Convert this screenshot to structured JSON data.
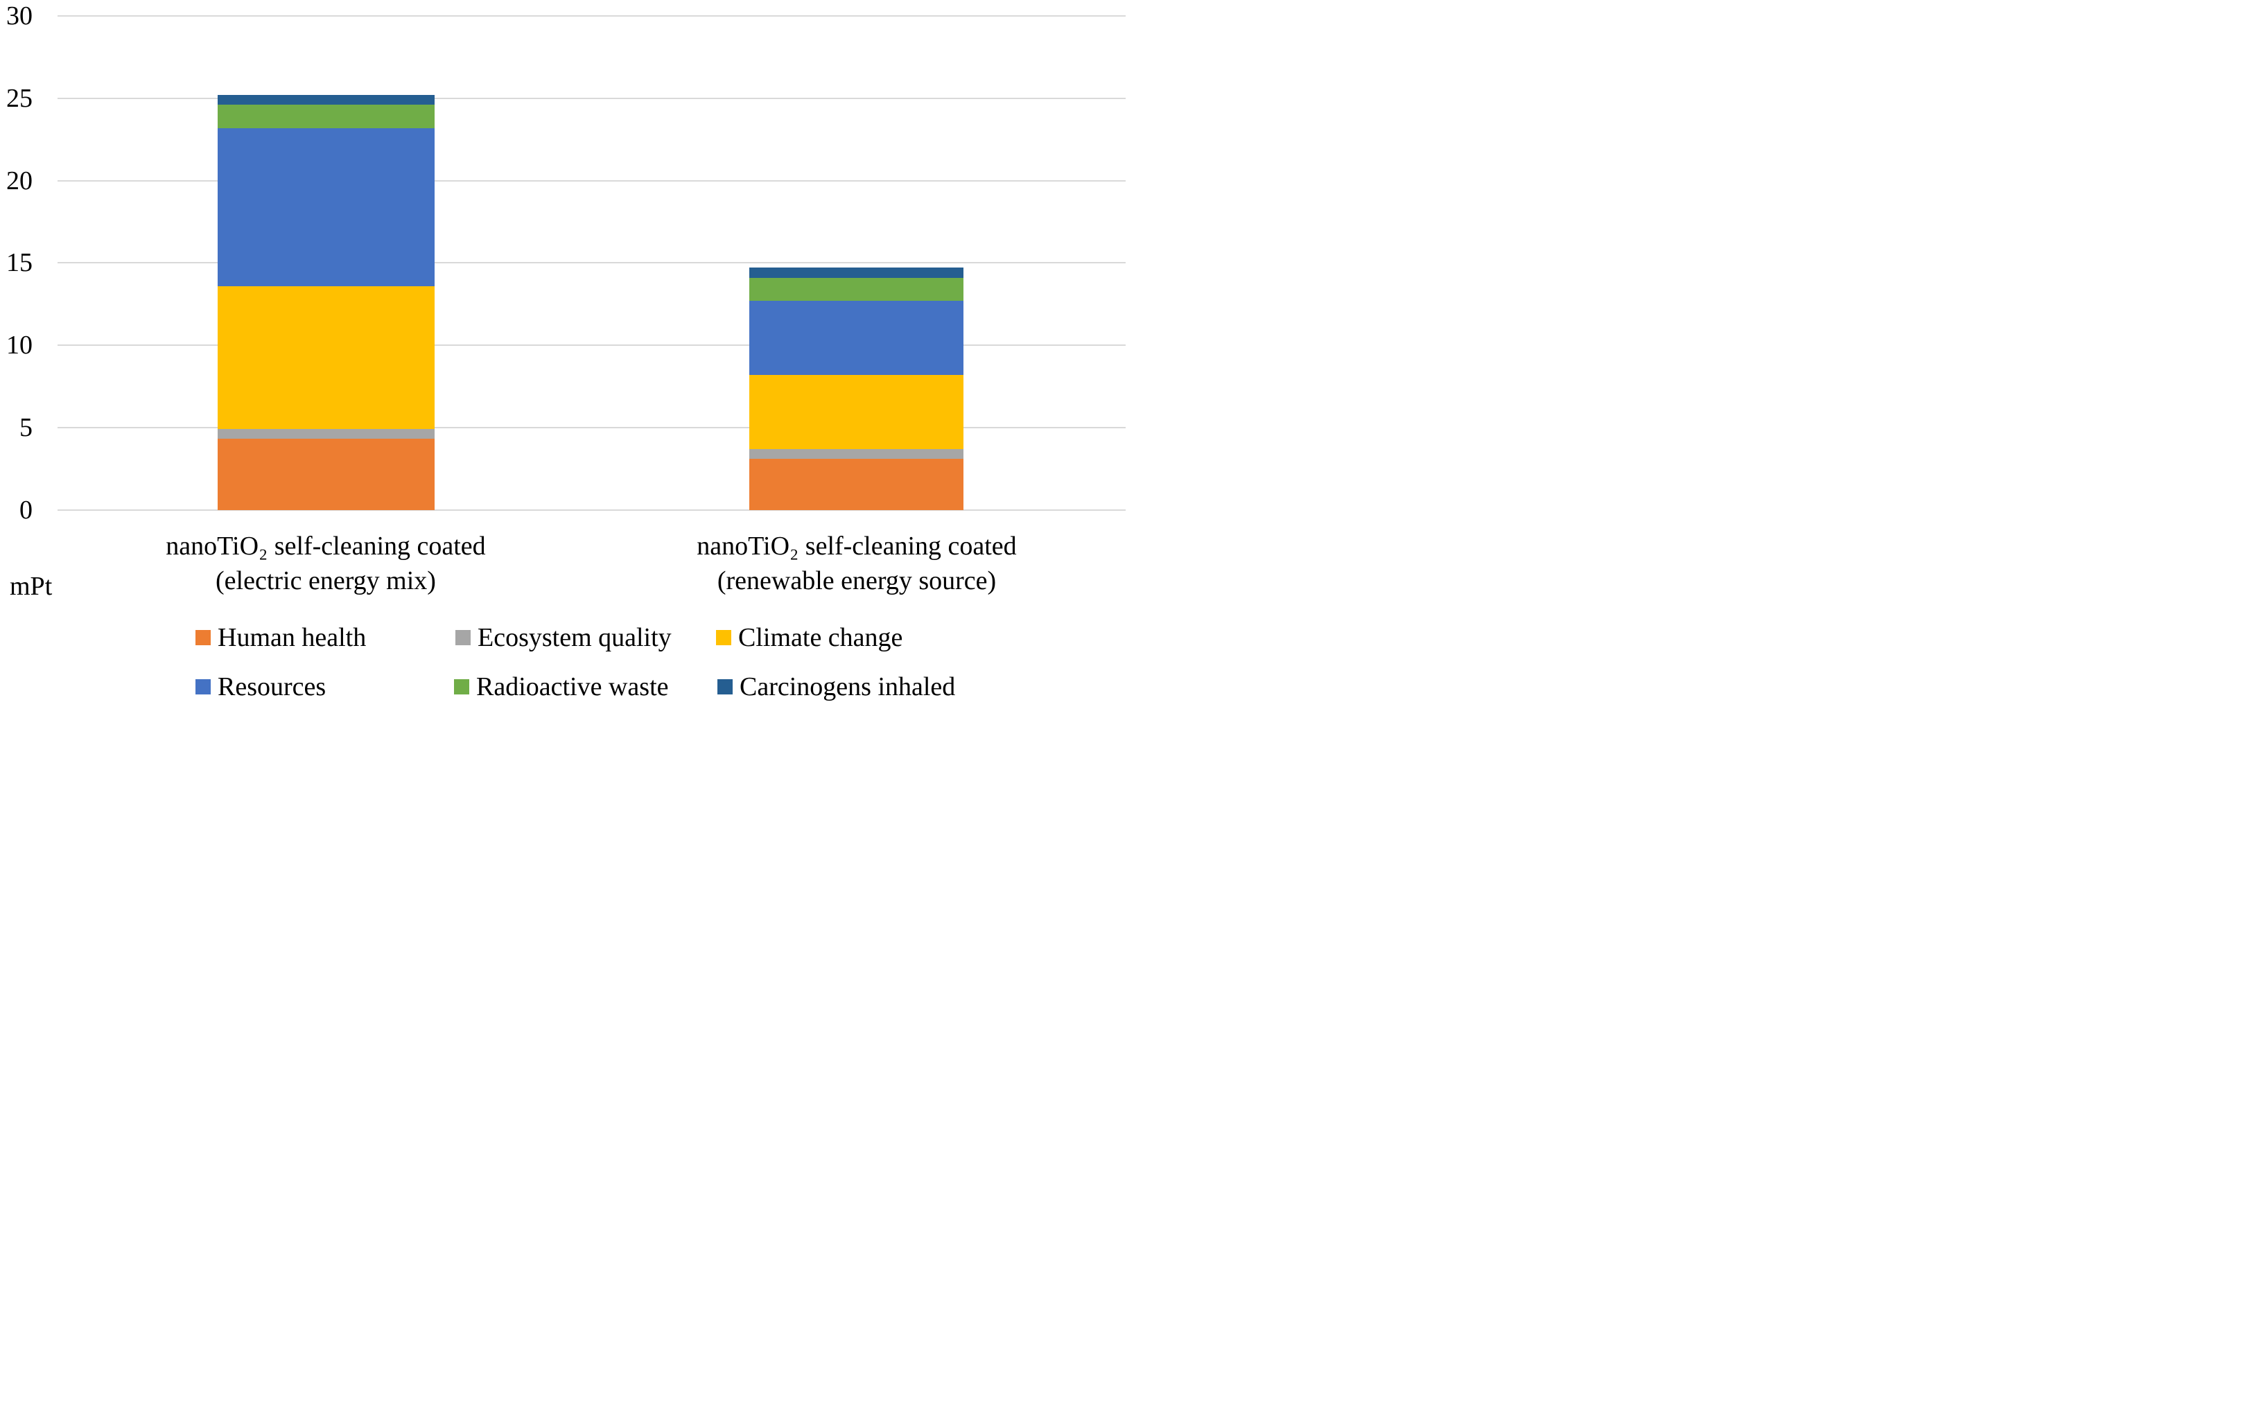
{
  "chart_data": {
    "type": "bar",
    "stacked": true,
    "title": "",
    "xlabel": "",
    "ylabel": "mPt",
    "unit_label": "mPt",
    "ylim": [
      0,
      30
    ],
    "yticks": [
      0,
      5,
      10,
      15,
      20,
      25,
      30
    ],
    "grid": true,
    "legend_position": "bottom",
    "categories": [
      "nanoTiO₂ self-cleaning coated (electric energy mix)",
      "nanoTiO₂ self-cleaning coated (renewable energy source)"
    ],
    "category_lines": [
      [
        "nanoTiO₂ self-cleaning coated",
        "(electric energy mix)"
      ],
      [
        "nanoTiO₂ self-cleaning coated",
        "(renewable energy source)"
      ]
    ],
    "series": [
      {
        "name": "Human health",
        "color": "#ED7D31",
        "values": [
          4.3,
          3.1
        ]
      },
      {
        "name": "Ecosystem quality",
        "color": "#A6A6A6",
        "values": [
          0.6,
          0.6
        ]
      },
      {
        "name": "Climate change",
        "color": "#FFC000",
        "values": [
          8.7,
          4.5
        ]
      },
      {
        "name": "Resources",
        "color": "#4472C4",
        "values": [
          9.6,
          4.5
        ]
      },
      {
        "name": "Radioactive waste",
        "color": "#70AD47",
        "values": [
          1.4,
          1.4
        ]
      },
      {
        "name": "Carcinogens inhaled",
        "color": "#255E91",
        "values": [
          0.6,
          0.6
        ]
      }
    ]
  },
  "legend": {
    "rows": [
      [
        0,
        1,
        2
      ],
      [
        3,
        4,
        5
      ]
    ]
  },
  "style": {
    "gridline_color": "#D9D9D9",
    "text_color": "#000000",
    "background": "#FFFFFF"
  }
}
